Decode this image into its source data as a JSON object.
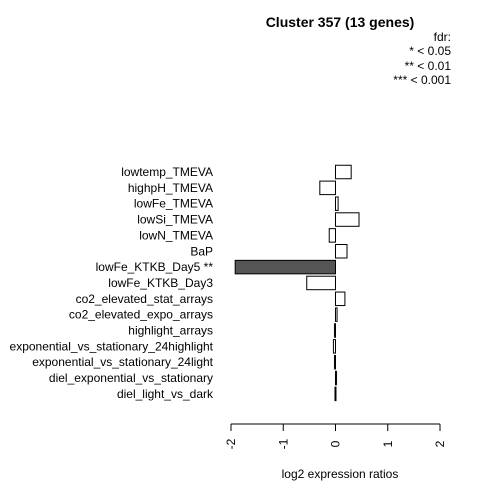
{
  "chart_data": {
    "type": "bar",
    "orientation": "horizontal",
    "title": "Cluster 357 (13 genes)",
    "legend": {
      "title": "fdr:",
      "entries": [
        "* < 0.05",
        "** < 0.01",
        "*** < 0.001"
      ]
    },
    "xlabel": "log2 expression ratios",
    "xlim": [
      -2,
      2
    ],
    "xticks": [
      -2,
      -1,
      0,
      1,
      2
    ],
    "xtick_labels": [
      "-2",
      "-1",
      "0",
      "1",
      "2"
    ],
    "categories": [
      "lowtemp_TMEVA",
      "highpH_TMEVA",
      "lowFe_TMEVA",
      "lowSi_TMEVA",
      "lowN_TMEVA",
      "BaP",
      "lowFe_KTKB_Day5 **",
      "lowFe_KTKB_Day3",
      "co2_elevated_stat_arrays",
      "co2_elevated_expo_arrays",
      "highlight_arrays",
      "exponential_vs_stationary_24highlight",
      "exponential_vs_stationary_24light",
      "diel_exponential_vs_stationary",
      "diel_light_vs_dark"
    ],
    "values": [
      0.3,
      -0.3,
      0.05,
      0.45,
      -0.12,
      0.22,
      -1.92,
      -0.55,
      0.18,
      0.03,
      -0.02,
      -0.04,
      -0.02,
      0.02,
      -0.01
    ],
    "highlighted": [
      false,
      false,
      false,
      false,
      false,
      false,
      true,
      false,
      false,
      false,
      false,
      false,
      false,
      false,
      false
    ],
    "colors": {
      "bar_fill": "#ffffff",
      "highlight_fill": "#555555",
      "bar_stroke": "#000000"
    }
  }
}
